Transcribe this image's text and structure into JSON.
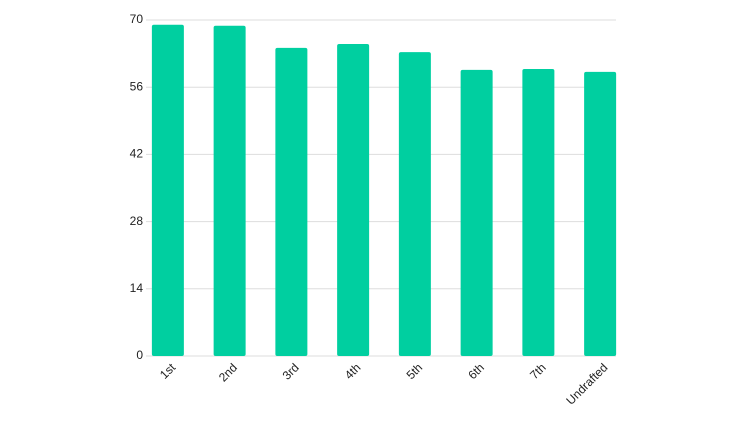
{
  "chart_data": {
    "type": "bar",
    "categories": [
      "1st",
      "2nd",
      "3rd",
      "4th",
      "5th",
      "6th",
      "7th",
      "Undrafted"
    ],
    "values": [
      69.0,
      68.8,
      64.2,
      65.0,
      63.3,
      59.6,
      59.8,
      59.2
    ],
    "color": "#00cfa0",
    "ylim": [
      0,
      70
    ],
    "yticks": [
      0,
      14,
      28,
      42,
      56,
      70
    ],
    "grid": true
  }
}
